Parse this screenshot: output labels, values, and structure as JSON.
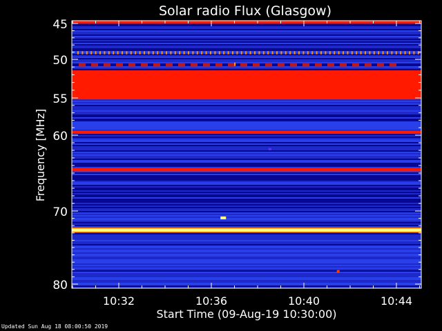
{
  "chart_data": {
    "type": "heatmap",
    "title": "Solar radio Flux (Glasgow)",
    "ylabel": "Frequency [MHz]",
    "xlabel": "Start Time (09-Aug-19 10:30:00)",
    "x_range_minutes": [
      10.5,
      15.0
    ],
    "y_range_mhz": [
      45,
      80
    ],
    "x_ticks": [
      {
        "value": 10.8667,
        "label": "10:32"
      },
      {
        "value": 10.9333,
        "label": "10:36"
      },
      {
        "value": 11.0,
        "label": "10:40"
      },
      {
        "value": 11.0667,
        "label": "10:44"
      }
    ],
    "y_ticks": [
      {
        "value": 45,
        "label": "45"
      },
      {
        "value": 50,
        "label": "50"
      },
      {
        "value": 55,
        "label": "55"
      },
      {
        "value": 60,
        "label": "60"
      },
      {
        "value": 70,
        "label": "70"
      },
      {
        "value": 80,
        "label": "80"
      }
    ],
    "colors": {
      "background_band": "#1a1ab8",
      "low": "#000080",
      "mid": "#3050ff",
      "red": "#ff1a00",
      "hot": "#ffff80",
      "axis": "#ffffff"
    },
    "bands": [
      {
        "from": 45.0,
        "to": 45.4,
        "level": "red"
      },
      {
        "from": 45.4,
        "to": 49.0,
        "level": "mid"
      },
      {
        "from": 49.0,
        "to": 49.4,
        "level": "hot_ticks"
      },
      {
        "from": 49.4,
        "to": 50.6,
        "level": "mid"
      },
      {
        "from": 50.6,
        "to": 51.0,
        "level": "red_dashed"
      },
      {
        "from": 51.0,
        "to": 51.5,
        "level": "mid"
      },
      {
        "from": 51.5,
        "to": 55.3,
        "level": "red"
      },
      {
        "from": 55.3,
        "to": 59.4,
        "level": "mid"
      },
      {
        "from": 59.4,
        "to": 59.8,
        "level": "red"
      },
      {
        "from": 59.8,
        "to": 64.3,
        "level": "mid"
      },
      {
        "from": 64.3,
        "to": 64.7,
        "level": "red"
      },
      {
        "from": 64.7,
        "to": 72.2,
        "level": "mid"
      },
      {
        "from": 72.2,
        "to": 72.6,
        "level": "hot"
      },
      {
        "from": 72.6,
        "to": 80.0,
        "level": "mid"
      }
    ]
  },
  "footer": {
    "updated": "Updated Sun Aug 18 08:00:50 2019"
  }
}
